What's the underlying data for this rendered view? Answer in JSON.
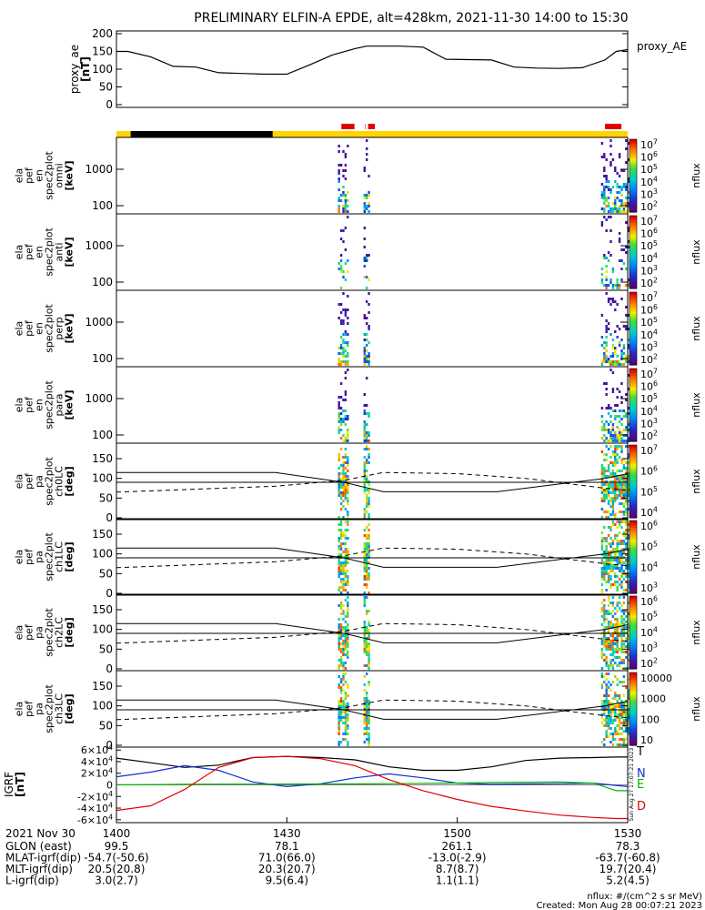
{
  "title": "PRELIMINARY ELFIN-A EPDE, alt=428km, 2021-11-30 14:00 to 15:30",
  "colors": {
    "sunlit_bar": "#ffd400",
    "eclipse_bar": "#000000",
    "science_zone": "#e00000",
    "igrf_T": "#000000",
    "igrf_N": "#1030d0",
    "igrf_E": "#00b000",
    "igrf_D": "#e00000"
  },
  "chart_data": [
    {
      "type": "line",
      "name": "proxy_ae",
      "ylabel": "proxy_ae [nT]",
      "legend": "proxy_AE",
      "ylim": [
        0,
        200
      ],
      "yticks": [
        "200",
        "150",
        "100",
        "50",
        "0"
      ],
      "x": [
        0,
        2,
        6,
        10,
        14,
        18,
        22,
        26,
        30,
        34,
        38,
        42,
        44,
        46,
        50,
        54,
        58,
        62,
        66,
        70,
        74,
        78,
        82,
        86,
        88,
        90
      ],
      "values": [
        150,
        150,
        135,
        108,
        106,
        90,
        88,
        86,
        86,
        112,
        140,
        158,
        165,
        165,
        165,
        162,
        128,
        127,
        126,
        106,
        103,
        102,
        104,
        126,
        150,
        155
      ]
    },
    {
      "type": "heatmap",
      "name": "ela_pef_en_spec2plot_omni",
      "ylabel": "ela pef en spec2plot omni [keV]",
      "yticks": [
        "1000",
        "100"
      ],
      "colorbar": [
        "10^7",
        "10^6",
        "10^5",
        "10^4",
        "10^3",
        "10^2"
      ],
      "colorbar_label": "nflux"
    },
    {
      "type": "heatmap",
      "name": "ela_pef_en_spec2plot_anti",
      "ylabel": "ela pef en spec2plot anti [keV]",
      "yticks": [
        "1000",
        "100"
      ],
      "colorbar": [
        "10^7",
        "10^6",
        "10^5",
        "10^4",
        "10^3",
        "10^2"
      ],
      "colorbar_label": "nflux"
    },
    {
      "type": "heatmap",
      "name": "ela_pef_en_spec2plot_perp",
      "ylabel": "ela pef en spec2plot perp [keV]",
      "yticks": [
        "1000",
        "100"
      ],
      "colorbar": [
        "10^7",
        "10^6",
        "10^5",
        "10^4",
        "10^3",
        "10^2"
      ],
      "colorbar_label": "nflux"
    },
    {
      "type": "heatmap",
      "name": "ela_pef_en_spec2plot_para",
      "ylabel": "ela pef en spec2plot para [keV]",
      "yticks": [
        "1000",
        "100"
      ],
      "colorbar": [
        "10^7",
        "10^6",
        "10^5",
        "10^4",
        "10^3",
        "10^2"
      ],
      "colorbar_label": "nflux"
    },
    {
      "type": "heatmap",
      "name": "ela_pef_pa_spec2plot_ch0LC",
      "ylabel": "ela pef pa spec2plot ch0LC [deg]",
      "yticks": [
        "150",
        "100",
        "50",
        "0"
      ],
      "colorbar": [
        "10^7",
        "10^6",
        "10^5",
        "10^4"
      ],
      "colorbar_label": "nflux"
    },
    {
      "type": "heatmap",
      "name": "ela_pef_pa_spec2plot_ch1LC",
      "ylabel": "ela pef pa spec2plot ch1LC [deg]",
      "yticks": [
        "150",
        "100",
        "50",
        "0"
      ],
      "colorbar": [
        "10^6",
        "10^5",
        "10^4",
        "10^3"
      ],
      "colorbar_label": "nflux"
    },
    {
      "type": "heatmap",
      "name": "ela_pef_pa_spec2plot_ch2LC",
      "ylabel": "ela pef pa spec2plot ch2LC [deg]",
      "yticks": [
        "150",
        "100",
        "50",
        "0"
      ],
      "colorbar": [
        "10^6",
        "10^5",
        "10^4",
        "10^3",
        "10^2"
      ],
      "colorbar_label": "nflux"
    },
    {
      "type": "heatmap",
      "name": "ela_pef_pa_spec2plot_ch3LC",
      "ylabel": "ela pef pa spec2plot ch3LC [deg]",
      "yticks": [
        "150",
        "100",
        "50",
        "0"
      ],
      "colorbar": [
        "10000",
        "1000",
        "100",
        "10"
      ],
      "colorbar_label": "nflux"
    },
    {
      "type": "line",
      "name": "igrf",
      "ylabel": "IGRF [nT]",
      "ylim": [
        -65000,
        65000
      ],
      "yticks": [
        "6×10^4",
        "4×10^4",
        "2×10^4",
        "0",
        "-2×10^4",
        "-4×10^4",
        "-6×10^4"
      ],
      "x": [
        0,
        6,
        12,
        18,
        24,
        30,
        36,
        42,
        48,
        54,
        60,
        66,
        72,
        78,
        84,
        88,
        90
      ],
      "series": [
        {
          "name": "T",
          "values": [
            46000,
            38000,
            30000,
            34000,
            47000,
            49000,
            47000,
            43000,
            31000,
            25000,
            25000,
            31000,
            42000,
            46000,
            47000,
            48000,
            48000
          ]
        },
        {
          "name": "N",
          "values": [
            14000,
            22000,
            33000,
            25000,
            5000,
            -3000,
            2000,
            12000,
            19000,
            12000,
            3000,
            1000,
            1500,
            2000,
            3000,
            -1000,
            -3000
          ]
        },
        {
          "name": "E",
          "values": [
            100,
            500,
            900,
            1200,
            1300,
            1400,
            1500,
            1600,
            2000,
            2600,
            3200,
            4000,
            4500,
            5000,
            3000,
            -10000,
            -10000
          ]
        },
        {
          "name": "D",
          "values": [
            -44000,
            -36000,
            -8000,
            30000,
            47000,
            49000,
            45000,
            33000,
            9000,
            -10000,
            -25000,
            -37000,
            -45000,
            -52000,
            -56000,
            -58000,
            -58000
          ]
        }
      ]
    }
  ],
  "time_axis": {
    "row_label": "2021 Nov 30",
    "ticks": [
      "1400",
      "1430",
      "1500",
      "1530"
    ]
  },
  "annotations": [
    {
      "label": "GLON (east)",
      "values": [
        "99.5",
        "78.1",
        "261.1",
        "78.3"
      ]
    },
    {
      "label": "MLAT-igrf(dip)",
      "values": [
        "-54.7(-50.6)",
        "71.0(66.0)",
        "-13.0(-2.9)",
        "-63.7(-60.8)"
      ]
    },
    {
      "label": "MLT-igrf(dip)",
      "values": [
        "20.5(20.8)",
        "20.3(20.7)",
        "8.7(8.7)",
        "19.7(20.4)"
      ]
    },
    {
      "label": "L-igrf(dip)",
      "values": [
        "3.0(2.7)",
        "9.5(6.4)",
        "1.1(1.1)",
        "5.2(4.5)"
      ]
    }
  ],
  "footer": {
    "units": "nflux: #/(cm^2 s sr MeV)",
    "created": "Created: Mon Aug 28 00:07:21 2023",
    "side_stamp": "Sun Aug 27 17:07:21 2023"
  }
}
